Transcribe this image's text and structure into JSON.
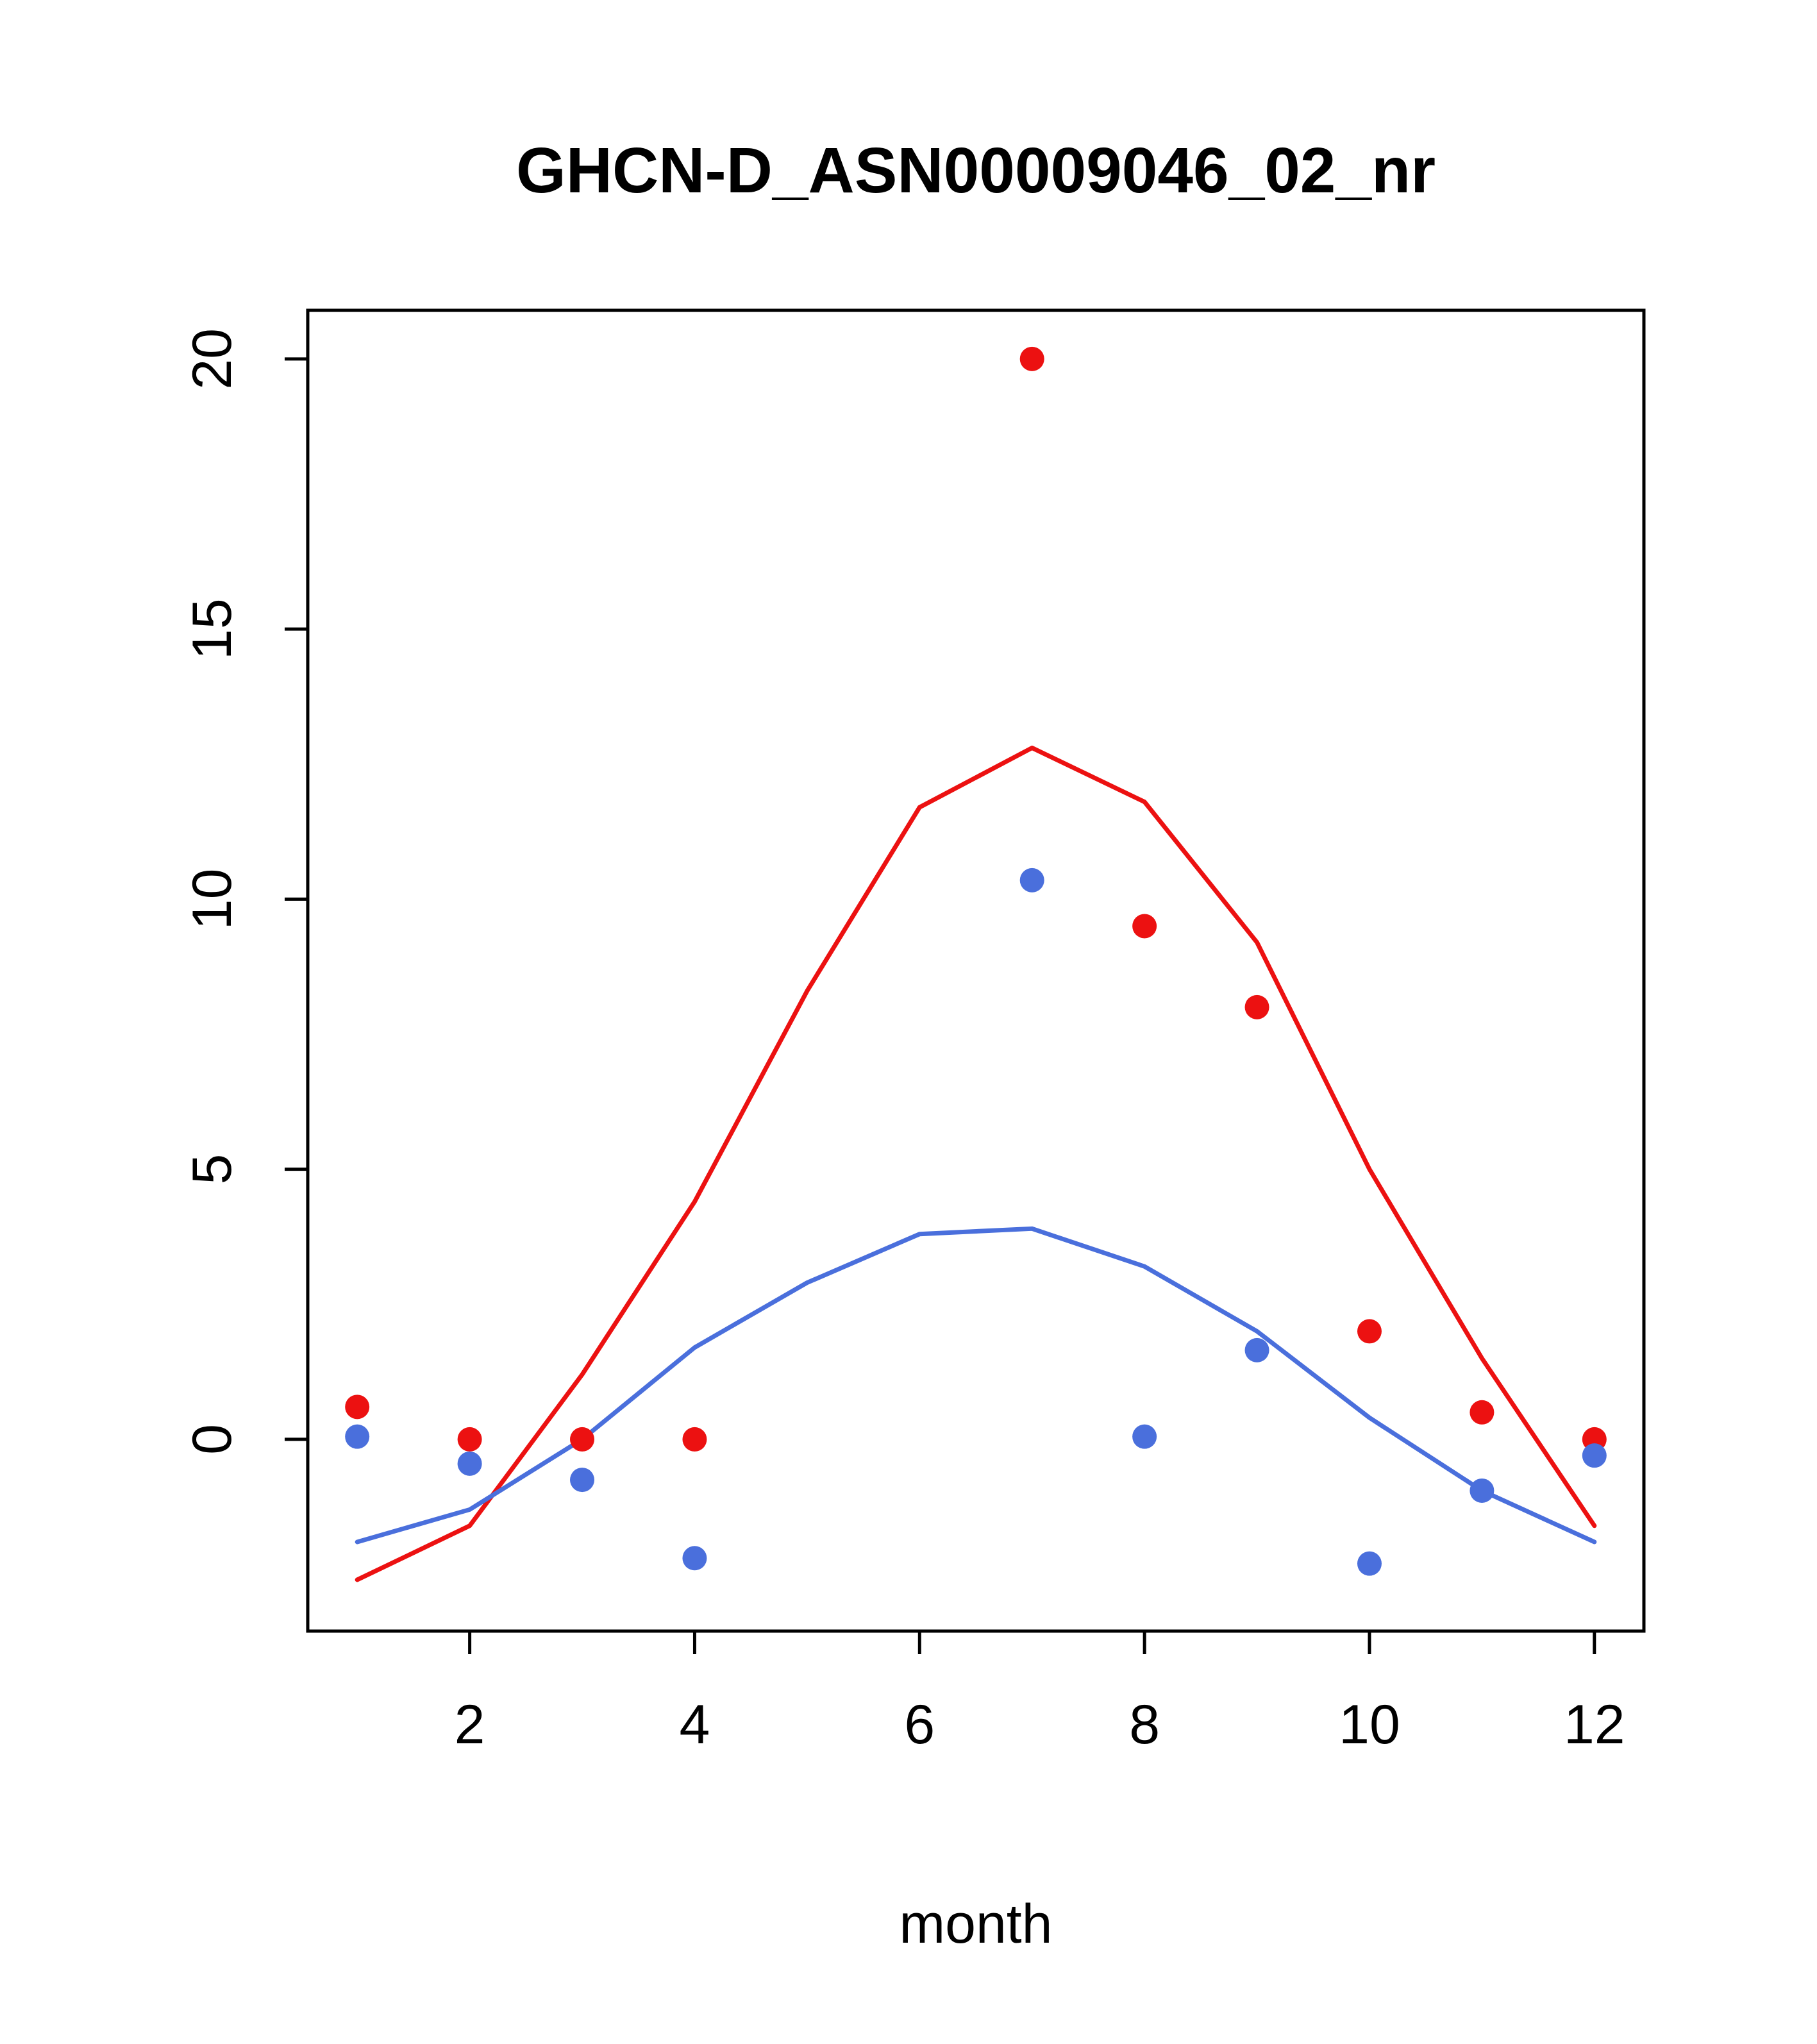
{
  "page": {
    "background_color": "#ffffff",
    "foreground_color": "#000000"
  },
  "chart_data": {
    "type": "line",
    "title": "GHCN-D_ASN00009046_02_nr",
    "xlabel": "month",
    "ylabel": "",
    "xlim": [
      0.56,
      12.44
    ],
    "ylim": [
      -3.55,
      20.9
    ],
    "xticks": [
      2,
      4,
      6,
      8,
      10,
      12
    ],
    "yticks": [
      0,
      5,
      10,
      15,
      20
    ],
    "grid": false,
    "legend": "none",
    "colors": {
      "red": "#ec1111",
      "blue": "#4a6fdc"
    },
    "series": [
      {
        "name": "red-line",
        "type": "line",
        "color": "#ec1111",
        "x": [
          1,
          2,
          3,
          4,
          5,
          6,
          7,
          8,
          9,
          10,
          11,
          12
        ],
        "values": [
          -2.6,
          -1.6,
          1.2,
          4.4,
          8.3,
          11.7,
          12.8,
          11.8,
          9.2,
          5.0,
          1.5,
          -1.6
        ]
      },
      {
        "name": "blue-line",
        "type": "line",
        "color": "#4a6fdc",
        "x": [
          1,
          2,
          3,
          4,
          5,
          6,
          7,
          8,
          9,
          10,
          11,
          12
        ],
        "values": [
          -1.9,
          -1.3,
          0.0,
          1.7,
          2.9,
          3.8,
          3.9,
          3.2,
          2.0,
          0.4,
          -0.95,
          -1.9
        ]
      },
      {
        "name": "red-points",
        "type": "scatter",
        "color": "#ec1111",
        "x": [
          1,
          2,
          3,
          4,
          7,
          8,
          9,
          10,
          11,
          12
        ],
        "values": [
          0.6,
          0.0,
          0.0,
          0.0,
          20.0,
          9.5,
          8.0,
          2.0,
          0.5,
          0.0
        ]
      },
      {
        "name": "blue-points",
        "type": "scatter",
        "color": "#4a6fdc",
        "x": [
          1,
          2,
          3,
          4,
          7,
          8,
          9,
          10,
          11,
          12
        ],
        "values": [
          0.05,
          -0.45,
          -0.75,
          -2.2,
          10.35,
          0.05,
          1.65,
          -2.3,
          -0.95,
          -0.3
        ]
      }
    ]
  }
}
